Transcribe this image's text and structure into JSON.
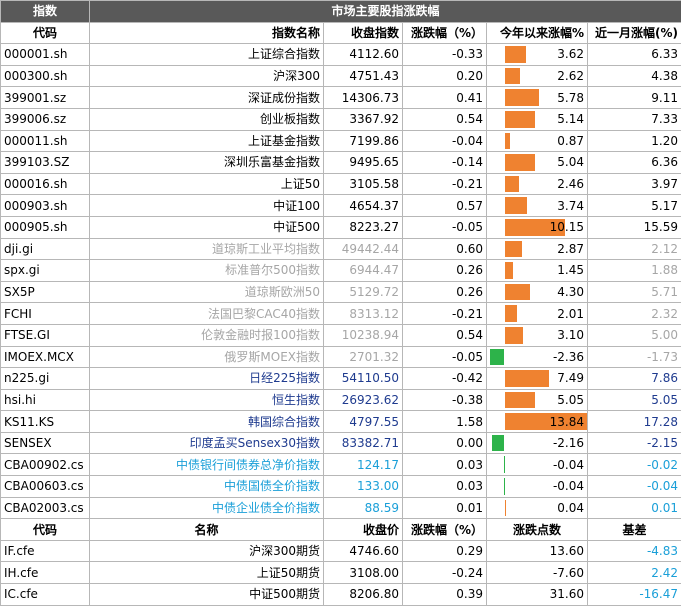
{
  "title": {
    "left": "指数",
    "center": "市场主要股指涨跌幅"
  },
  "headers": [
    "代码",
    "指数名称",
    "收盘指数",
    "涨跌幅（%）",
    "今年以来涨幅%",
    "近一月涨幅(%)"
  ],
  "rows": [
    {
      "code": "000001.sh",
      "name": "上证综合指数",
      "close": "4112.60",
      "chg": "-0.33",
      "ytd": "3.62",
      "ytd_v": 3.62,
      "mon": "6.33",
      "nc": "blk"
    },
    {
      "code": "000300.sh",
      "name": "沪深300",
      "close": "4751.43",
      "chg": "0.20",
      "ytd": "2.62",
      "ytd_v": 2.62,
      "mon": "4.38",
      "nc": "blk"
    },
    {
      "code": "399001.sz",
      "name": "深证成份指数",
      "close": "14306.73",
      "chg": "0.41",
      "ytd": "5.78",
      "ytd_v": 5.78,
      "mon": "9.11",
      "nc": "blk"
    },
    {
      "code": "399006.sz",
      "name": "创业板指数",
      "close": "3367.92",
      "chg": "0.54",
      "ytd": "5.14",
      "ytd_v": 5.14,
      "mon": "7.33",
      "nc": "blk"
    },
    {
      "code": "000011.sh",
      "name": "上证基金指数",
      "close": "7199.86",
      "chg": "-0.04",
      "ytd": "0.87",
      "ytd_v": 0.87,
      "mon": "1.20",
      "nc": "blk"
    },
    {
      "code": "399103.SZ",
      "name": "深圳乐富基金指数",
      "close": "9495.65",
      "chg": "-0.14",
      "ytd": "5.04",
      "ytd_v": 5.04,
      "mon": "6.36",
      "nc": "blk"
    },
    {
      "code": "000016.sh",
      "name": "上证50",
      "close": "3105.58",
      "chg": "-0.21",
      "ytd": "2.46",
      "ytd_v": 2.46,
      "mon": "3.97",
      "nc": "blk"
    },
    {
      "code": "000903.sh",
      "name": "中证100",
      "close": "4654.37",
      "chg": "0.57",
      "ytd": "3.74",
      "ytd_v": 3.74,
      "mon": "5.17",
      "nc": "blk"
    },
    {
      "code": "000905.sh",
      "name": "中证500",
      "close": "8223.27",
      "chg": "-0.05",
      "ytd": "10.15",
      "ytd_v": 10.15,
      "mon": "15.59",
      "nc": "blk"
    },
    {
      "code": "dji.gi",
      "name": "道琼斯工业平均指数",
      "close": "49442.44",
      "chg": "0.60",
      "ytd": "2.87",
      "ytd_v": 2.87,
      "mon": "2.12",
      "nc": "gry"
    },
    {
      "code": "spx.gi",
      "name": "标准普尔500指数",
      "close": "6944.47",
      "chg": "0.26",
      "ytd": "1.45",
      "ytd_v": 1.45,
      "mon": "1.88",
      "nc": "gry"
    },
    {
      "code": "SX5P",
      "name": "道琼斯欧洲50",
      "close": "5129.72",
      "chg": "0.26",
      "ytd": "4.30",
      "ytd_v": 4.3,
      "mon": "5.71",
      "nc": "gry"
    },
    {
      "code": "FCHI",
      "name": "法国巴黎CAC40指数",
      "close": "8313.12",
      "chg": "-0.21",
      "ytd": "2.01",
      "ytd_v": 2.01,
      "mon": "2.32",
      "nc": "gry"
    },
    {
      "code": "FTSE.GI",
      "name": "伦敦金融时报100指数",
      "close": "10238.94",
      "chg": "0.54",
      "ytd": "3.10",
      "ytd_v": 3.1,
      "mon": "5.00",
      "nc": "gry"
    },
    {
      "code": "IMOEX.MCX",
      "name": "俄罗斯MOEX指数",
      "close": "2701.32",
      "chg": "-0.05",
      "ytd": "-2.36",
      "ytd_v": -2.36,
      "mon": "-1.73",
      "nc": "gry"
    },
    {
      "code": "n225.gi",
      "name": "日经225指数",
      "close": "54110.50",
      "chg": "-0.42",
      "ytd": "7.49",
      "ytd_v": 7.49,
      "mon": "7.86",
      "nc": "blu"
    },
    {
      "code": "hsi.hi",
      "name": "恒生指数",
      "close": "26923.62",
      "chg": "-0.38",
      "ytd": "5.05",
      "ytd_v": 5.05,
      "mon": "5.05",
      "nc": "blu"
    },
    {
      "code": "KS11.KS",
      "name": "韩国综合指数",
      "close": "4797.55",
      "chg": "1.58",
      "ytd": "13.84",
      "ytd_v": 13.84,
      "mon": "17.28",
      "nc": "blu"
    },
    {
      "code": "SENSEX",
      "name": "印度孟买Sensex30指数",
      "close": "83382.71",
      "chg": "0.00",
      "ytd": "-2.16",
      "ytd_v": -2.16,
      "mon": "-2.15",
      "nc": "blu"
    },
    {
      "code": "CBA00902.cs",
      "name": "中债银行间债券总净价指数",
      "close": "124.17",
      "chg": "0.03",
      "ytd": "-0.04",
      "ytd_v": -0.04,
      "mon": "-0.02",
      "nc": "cyn"
    },
    {
      "code": "CBA00603.cs",
      "name": "中债国债全价指数",
      "close": "133.00",
      "chg": "0.03",
      "ytd": "-0.04",
      "ytd_v": -0.04,
      "mon": "-0.04",
      "nc": "cyn"
    },
    {
      "code": "CBA02003.cs",
      "name": "中债企业债全价指数",
      "close": "88.59",
      "chg": "0.01",
      "ytd": "0.04",
      "ytd_v": 0.04,
      "mon": "0.01",
      "nc": "cyn"
    }
  ],
  "fut_headers": [
    "代码",
    "名称",
    "收盘价",
    "涨跌幅（%）",
    "涨跌点数",
    "基差"
  ],
  "futures": [
    {
      "code": "IF.cfe",
      "name": "沪深300期货",
      "close": "4746.60",
      "chg": "0.29",
      "pts": "13.60",
      "basis": "-4.83"
    },
    {
      "code": "IH.cfe",
      "name": "上证50期货",
      "close": "3108.00",
      "chg": "-0.24",
      "pts": "-7.60",
      "basis": "2.42"
    },
    {
      "code": "IC.cfe",
      "name": "中证500期货",
      "close": "8206.80",
      "chg": "0.39",
      "pts": "31.60",
      "basis": "-16.47"
    }
  ]
}
